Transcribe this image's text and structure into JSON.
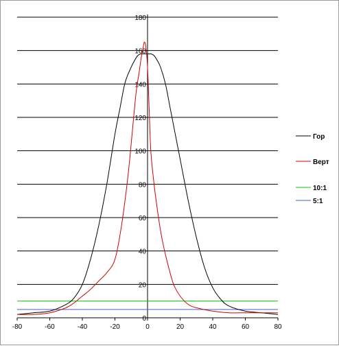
{
  "chart_data": {
    "type": "line",
    "title": "",
    "xlabel": "",
    "ylabel": "",
    "xlim": [
      -80,
      80
    ],
    "ylim": [
      0,
      180
    ],
    "x_ticks": [
      "-80",
      "-60",
      "-40",
      "-20",
      "0",
      "20",
      "40",
      "60",
      "80"
    ],
    "y_ticks": [
      "0",
      "20",
      "40",
      "60",
      "80",
      "100",
      "120",
      "140",
      "160",
      "180"
    ],
    "grid": "horizontal",
    "legend_placement": "right",
    "series": [
      {
        "name": "Гор",
        "color": "#000000",
        "x": [
          -80,
          -70,
          -60,
          -50,
          -45,
          -40,
          -35,
          -30,
          -25,
          -20,
          -17,
          -14,
          -11,
          -8,
          -6,
          -4,
          -2,
          0,
          2,
          4,
          6,
          8,
          11,
          14,
          17,
          20,
          25,
          30,
          35,
          40,
          45,
          50,
          60,
          70,
          80
        ],
        "y": [
          2,
          3,
          4,
          8,
          12,
          20,
          35,
          55,
          80,
          110,
          125,
          140,
          148,
          154,
          157,
          158,
          158,
          158,
          158,
          157,
          154,
          150,
          140,
          125,
          110,
          95,
          70,
          48,
          30,
          18,
          11,
          7,
          4,
          3,
          2
        ]
      },
      {
        "name": "Верт",
        "color": "#d40000",
        "x": [
          -80,
          -70,
          -60,
          -50,
          -45,
          -40,
          -35,
          -30,
          -25,
          -20,
          -16,
          -12,
          -9,
          -7,
          -5,
          -4,
          -3,
          -2,
          -1,
          0,
          1,
          2,
          4,
          6,
          8,
          10,
          13,
          16,
          20,
          25,
          30,
          40,
          50,
          60,
          70,
          80
        ],
        "y": [
          2,
          2,
          3,
          6,
          9,
          13,
          17,
          22,
          27,
          35,
          55,
          85,
          115,
          135,
          148,
          155,
          160,
          165,
          162,
          150,
          125,
          100,
          80,
          65,
          52,
          42,
          30,
          20,
          13,
          8,
          6,
          4,
          3,
          3,
          3,
          3
        ]
      },
      {
        "name": "10:1",
        "color": "#00cc00",
        "x": [
          -80,
          80
        ],
        "y": [
          10,
          10
        ]
      },
      {
        "name": "5:1",
        "color": "#4a5bd6",
        "x": [
          -80,
          80
        ],
        "y": [
          5,
          5
        ]
      }
    ]
  }
}
